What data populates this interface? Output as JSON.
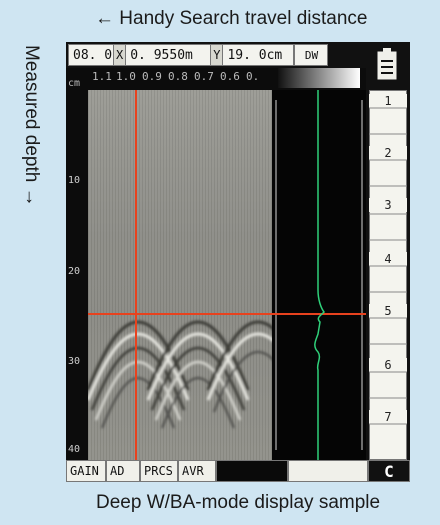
{
  "captions": {
    "top": "← Handy Search travel distance",
    "side": "Measured depth →",
    "bottom": "Deep W/BA-mode display sample"
  },
  "header": {
    "mode_value": "08. 0",
    "x_label": "X",
    "x_value": "0. 9550m",
    "y_label": "Y",
    "y_value": "19. 0cm",
    "dw_label": "DW"
  },
  "scale": {
    "unit": "cm",
    "labels": [
      "1.1",
      "1.0",
      "0.9",
      "0.8",
      "0.7",
      "0.6",
      "0."
    ]
  },
  "depth_ruler": {
    "labels": [
      "10",
      "20",
      "30",
      "40"
    ]
  },
  "right_panel": {
    "marks": [
      "1",
      "2",
      "3",
      "4",
      "5",
      "6",
      "7"
    ]
  },
  "footer": {
    "gain": "GAIN",
    "ad": "AD",
    "prcs": "PRCS",
    "avr": "AVR",
    "c_button": "C"
  },
  "colors": {
    "background": "#cfe5f2",
    "cursor": "#e8421e",
    "trace": "#2fd07a"
  }
}
